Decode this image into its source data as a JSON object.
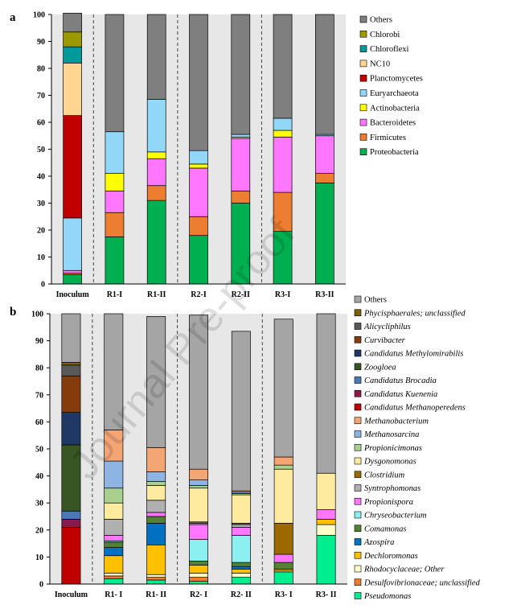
{
  "watermark": "Journal Pre-proof",
  "chart_data": [
    {
      "type": "bar",
      "stacked": true,
      "panel_label": "a",
      "title": "",
      "xlabel": "",
      "ylabel": "",
      "ylim": [
        0,
        100
      ],
      "yticks": [
        0,
        10,
        20,
        30,
        40,
        50,
        60,
        70,
        80,
        90,
        100
      ],
      "categories": [
        "Inoculum",
        "R1-I",
        "R1-II",
        "R2-I",
        "R2-II",
        "R3-I",
        "R3-II"
      ],
      "dividers_after": [
        0,
        2,
        4
      ],
      "legend_position": "right",
      "series": [
        {
          "name": "Proteobacteria",
          "color": "#00b050",
          "values": [
            3.5,
            17.5,
            31,
            18,
            30,
            19.5,
            37.5
          ]
        },
        {
          "name": "Firmicutes",
          "color": "#ed7d31",
          "values": [
            0.5,
            9,
            5.5,
            7,
            4.5,
            14.5,
            3.5
          ]
        },
        {
          "name": "Bacteroidetes",
          "color": "#ff77ff",
          "values": [
            1,
            8,
            10,
            18,
            19.5,
            20.5,
            14
          ]
        },
        {
          "name": "Actinobacteria",
          "color": "#ffff00",
          "values": [
            0,
            6.5,
            2.5,
            1.5,
            0.5,
            2.5,
            0
          ]
        },
        {
          "name": "Euryarchaeota",
          "color": "#92d7f7",
          "values": [
            19.5,
            15.5,
            19.5,
            5,
            1,
            4.5,
            0.5
          ]
        },
        {
          "name": "Planctomycetes",
          "color": "#c00000",
          "values": [
            38,
            0,
            0,
            0,
            0,
            0,
            0
          ]
        },
        {
          "name": "NC10",
          "color": "#ffd591",
          "values": [
            19.5,
            0,
            0,
            0,
            0,
            0,
            0
          ]
        },
        {
          "name": "Chloroflexi",
          "color": "#009a9a",
          "values": [
            6,
            0,
            0,
            0,
            0,
            0,
            0
          ]
        },
        {
          "name": "Chlorobi",
          "color": "#9a9a00",
          "values": [
            5.5,
            0,
            0,
            0,
            0,
            0,
            0
          ]
        },
        {
          "name": "Others",
          "color": "#7f7f7f",
          "values": [
            7,
            43.5,
            31.5,
            50.5,
            44.5,
            38.5,
            44.5
          ]
        }
      ]
    },
    {
      "type": "bar",
      "stacked": true,
      "panel_label": "b",
      "title": "",
      "xlabel": "",
      "ylabel": "",
      "ylim": [
        0,
        100
      ],
      "yticks": [
        0,
        10,
        20,
        30,
        40,
        50,
        60,
        70,
        80,
        90,
        100
      ],
      "categories": [
        "Inoculum",
        "R1- I",
        "R1- II",
        "R2- I",
        "R2- II",
        "R3- I",
        "R3- II"
      ],
      "dividers_after": [
        0,
        2,
        4
      ],
      "legend_position": "right",
      "series": [
        {
          "name": "Pseudomonas",
          "color": "#00ee90",
          "values": [
            0,
            2,
            1.5,
            1,
            2.5,
            4.5,
            18
          ]
        },
        {
          "name": "Desulfovibrionaceae; unclassified",
          "color": "#ed7d31",
          "values": [
            0,
            1,
            1,
            1.5,
            0,
            0,
            0
          ]
        },
        {
          "name": "Rhodocyclaceae; Other",
          "color": "#ffffc8",
          "values": [
            0,
            1,
            1,
            1.5,
            1.5,
            0.5,
            4
          ]
        },
        {
          "name": "Dechloromonas",
          "color": "#ffc000",
          "values": [
            0,
            6.5,
            11,
            3,
            1.5,
            0.5,
            2
          ]
        },
        {
          "name": "Azospira",
          "color": "#0070c0",
          "values": [
            0,
            3,
            8,
            0,
            1,
            0,
            0
          ]
        },
        {
          "name": "Comamonas",
          "color": "#548235",
          "values": [
            0,
            2,
            2.5,
            1.5,
            1.5,
            2.5,
            0
          ]
        },
        {
          "name": "Chryseobacterium",
          "color": "#8cf0f0",
          "values": [
            0,
            0.5,
            0,
            8,
            10,
            0,
            0
          ]
        },
        {
          "name": "Propionispora",
          "color": "#ff77ff",
          "values": [
            0,
            2,
            1.5,
            5.5,
            3,
            3,
            3.5
          ]
        },
        {
          "name": "Syntrophomonas",
          "color": "#b0b0b0",
          "values": [
            0,
            6,
            4.5,
            0.5,
            1,
            0,
            0
          ]
        },
        {
          "name": "Clostridium",
          "color": "#9a6a00",
          "values": [
            0,
            0,
            0,
            0.5,
            0.5,
            11.5,
            0
          ]
        },
        {
          "name": "Dysgonomonas",
          "color": "#ffeba0",
          "values": [
            0,
            6,
            5.5,
            12.5,
            10.5,
            20,
            13.5
          ]
        },
        {
          "name": "Propionicimonas",
          "color": "#a9d08e",
          "values": [
            0,
            5.5,
            1.5,
            1,
            0.5,
            1.5,
            0
          ]
        },
        {
          "name": "Methanosarcina",
          "color": "#8eb4e3",
          "values": [
            0,
            10,
            3.5,
            2,
            0.5,
            0,
            0
          ]
        },
        {
          "name": "Methanobacterium",
          "color": "#f4a574",
          "values": [
            0,
            11.5,
            9,
            4,
            0.5,
            3,
            0
          ]
        },
        {
          "name": "Candidatus Methanoperedens",
          "color": "#c00000",
          "values": [
            21,
            0,
            0,
            0,
            0,
            0,
            0
          ]
        },
        {
          "name": "Candidatus Kuenenia",
          "color": "#8b1a4a",
          "values": [
            3,
            0,
            0,
            0,
            0,
            0,
            0
          ]
        },
        {
          "name": "Candidatus Brocadia",
          "color": "#4a7ab5",
          "values": [
            3,
            0,
            0,
            0,
            0,
            0,
            0
          ]
        },
        {
          "name": "Zoogloea",
          "color": "#375623",
          "values": [
            24.5,
            0,
            0,
            0,
            0,
            0,
            0
          ]
        },
        {
          "name": "Candidatus Methylomirabilis",
          "color": "#203864",
          "values": [
            12,
            0,
            0,
            0,
            0,
            0,
            0
          ]
        },
        {
          "name": "Curvibacter",
          "color": "#843c0c",
          "values": [
            13.5,
            0,
            0,
            0,
            0,
            0,
            0
          ]
        },
        {
          "name": "Alicycliphilus",
          "color": "#595959",
          "values": [
            4,
            0,
            0,
            0,
            0,
            0,
            0
          ]
        },
        {
          "name": "Phycisphaerales; unclassified",
          "color": "#7f6000",
          "values": [
            1,
            0,
            0,
            0,
            0,
            0,
            0
          ]
        },
        {
          "name": "Others",
          "color": "#a5a5a5",
          "values": [
            18,
            43,
            48.5,
            57,
            59,
            51,
            59
          ]
        }
      ]
    }
  ]
}
